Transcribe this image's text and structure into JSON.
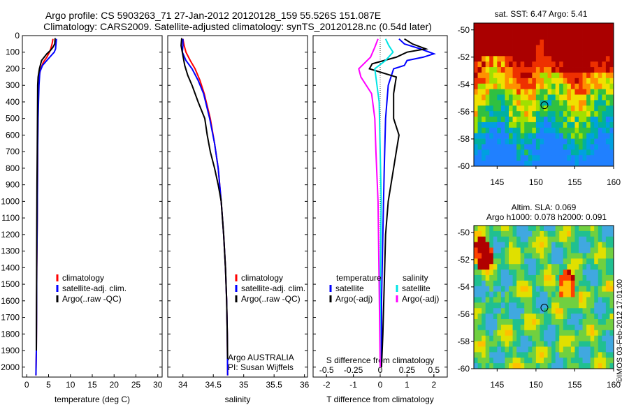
{
  "header": {
    "line1": "Argo profile: CS 5903263_71 27-Jan-2012 20120128_159 55.526S 151.087E",
    "line2": "Climatology: CARS2009. Satellite-adjusted climatology: synTS_20120128.nc (0.54d later)"
  },
  "credit": "©IMOS 03-Feb-2012 17:01:00",
  "colors": {
    "climatology": "#ff0000",
    "satellite": "#0000ff",
    "argo": "#000000",
    "sat_s": "#00e5e5",
    "argo_s": "#ff00ff"
  },
  "chart_data": [
    {
      "type": "line",
      "panel": "temperature",
      "xlabel": "temperature (deg C)",
      "ylabel": "",
      "xlim": [
        -1,
        31
      ],
      "ylim": [
        2060,
        0
      ],
      "xticks": [
        "0",
        "5",
        "10",
        "15",
        "20",
        "25",
        "30"
      ],
      "yticks": [
        "0",
        "100",
        "200",
        "300",
        "400",
        "500",
        "600",
        "700",
        "800",
        "900",
        "1000",
        "1100",
        "1200",
        "1300",
        "1400",
        "1500",
        "1600",
        "1700",
        "1800",
        "1900",
        "2000"
      ],
      "legend": [
        "climatology",
        "satellite-adj. clim.",
        "Argo(..raw -QC)"
      ],
      "series": [
        {
          "name": "climatology",
          "color": "climatology",
          "x": [
            6.0,
            5.8,
            5.5,
            5.2,
            4.6,
            3.8,
            3.2,
            2.8,
            2.7,
            2.6,
            2.55,
            2.5,
            2.45,
            2.4,
            2.3,
            2.25,
            2.2,
            2.1
          ],
          "y": [
            20,
            50,
            80,
            100,
            130,
            160,
            200,
            250,
            300,
            400,
            500,
            700,
            900,
            1100,
            1400,
            1700,
            1900,
            2050
          ]
        },
        {
          "name": "satellite-adj. clim.",
          "color": "satellite",
          "x": [
            6.8,
            6.7,
            6.6,
            6.3,
            5.6,
            4.6,
            3.6,
            3.0,
            2.8,
            2.7,
            2.6,
            2.5,
            2.45,
            2.4,
            2.3,
            2.25,
            2.2,
            2.1
          ],
          "y": [
            20,
            50,
            80,
            100,
            120,
            150,
            180,
            220,
            300,
            400,
            500,
            700,
            900,
            1100,
            1400,
            1700,
            1900,
            2050
          ]
        },
        {
          "name": "Argo(..raw -QC)",
          "color": "argo",
          "x": [
            6.5,
            6.4,
            6.0,
            5.4,
            4.6,
            3.4,
            2.9,
            2.6,
            2.5,
            2.45,
            2.4,
            2.35,
            2.3,
            2.2
          ],
          "y": [
            15,
            50,
            70,
            90,
            110,
            150,
            200,
            250,
            300,
            500,
            700,
            900,
            1200,
            1900
          ]
        }
      ]
    },
    {
      "type": "line",
      "panel": "salinity",
      "xlabel": "salinity",
      "ylabel": "",
      "xlim": [
        33.75,
        36.05
      ],
      "ylim": [
        2060,
        0
      ],
      "xticks": [
        "34",
        "34.5",
        "35",
        "35.5",
        "36"
      ],
      "legend": [
        "climatology",
        "satellite-adj. clim.",
        "Argo(..raw -QC)"
      ],
      "series": [
        {
          "name": "climatology",
          "color": "climatology",
          "x": [
            34.0,
            34.02,
            34.05,
            34.12,
            34.2,
            34.28,
            34.35,
            34.45,
            34.52,
            34.58,
            34.63,
            34.67,
            34.7,
            34.72,
            34.73,
            34.735
          ],
          "y": [
            20,
            60,
            100,
            150,
            200,
            270,
            350,
            500,
            650,
            800,
            1000,
            1200,
            1400,
            1600,
            1800,
            2050
          ]
        },
        {
          "name": "satellite-adj. clim.",
          "color": "satellite",
          "x": [
            34.0,
            34.0,
            33.99,
            34.05,
            34.15,
            34.25,
            34.34,
            34.44,
            34.52,
            34.58,
            34.63,
            34.67,
            34.7,
            34.72,
            34.73,
            34.735
          ],
          "y": [
            20,
            60,
            100,
            150,
            200,
            270,
            350,
            500,
            650,
            800,
            1000,
            1200,
            1400,
            1600,
            1800,
            2050
          ]
        },
        {
          "name": "Argo(..raw -QC)",
          "color": "argo",
          "x": [
            33.98,
            33.97,
            34.0,
            34.03,
            34.08,
            34.15,
            34.25,
            34.36,
            34.4,
            34.45,
            34.52,
            34.58,
            34.63,
            34.67,
            34.7,
            34.72,
            34.73,
            34.735
          ],
          "y": [
            15,
            60,
            120,
            180,
            240,
            300,
            400,
            500,
            600,
            700,
            800,
            900,
            1000,
            1200,
            1400,
            1600,
            1800,
            1950
          ]
        }
      ],
      "annotations": [
        "Argo AUSTRALIA",
        "PI: Susan Wijffels"
      ]
    },
    {
      "type": "line",
      "panel": "difference",
      "xlabel": "T difference from climatology",
      "x2label": "S difference from climatology",
      "xlim": [
        -2.5,
        2.5
      ],
      "x2lim": [
        -0.625,
        0.625
      ],
      "ylim": [
        2060,
        0
      ],
      "xticks": [
        "-2",
        "-1",
        "0",
        "1",
        "2"
      ],
      "x2ticks": [
        "-0.5",
        "-0.25",
        "0",
        "0.25",
        "0.5"
      ],
      "legend": [
        "temperature",
        "satellite",
        "Argo(-adj)",
        "salinity",
        "satellite",
        "Argo(-adj)"
      ],
      "series": [
        {
          "name": "temperature satellite",
          "color": "satellite",
          "x": [
            0.7,
            0.9,
            1.5,
            2.0,
            1.6,
            1.0,
            0.9,
            0.5,
            0.3,
            0.2,
            0.15,
            0.1,
            0.05,
            0.05
          ],
          "y": [
            20,
            50,
            80,
            110,
            130,
            150,
            180,
            200,
            300,
            500,
            800,
            1200,
            1600,
            2000
          ]
        },
        {
          "name": "temperature Argo(-adj)",
          "color": "argo",
          "x": [
            0.9,
            1.2,
            1.7,
            1.0,
            0.6,
            -0.3,
            -0.4,
            0.6,
            0.5,
            0.5,
            0.7,
            0.6,
            0.5,
            0.3,
            0.2,
            0.15,
            0.1,
            0.05
          ],
          "y": [
            20,
            50,
            80,
            100,
            130,
            170,
            200,
            250,
            350,
            500,
            600,
            700,
            800,
            1000,
            1200,
            1500,
            1800,
            2000
          ]
        },
        {
          "name": "salinity satellite",
          "color": "sat_s",
          "x": [
            0.05,
            0.08,
            0.12,
            0.05,
            -0.05,
            -0.01,
            0.0,
            0.01,
            0.0,
            0.0
          ],
          "y": [
            20,
            60,
            100,
            150,
            200,
            400,
            700,
            1000,
            1500,
            2000
          ]
        },
        {
          "name": "salinity Argo(-adj)",
          "color": "argo_s",
          "x": [
            -0.02,
            -0.05,
            -0.09,
            -0.2,
            -0.18,
            -0.08,
            -0.05,
            -0.04,
            -0.02,
            -0.01,
            0.0
          ],
          "y": [
            20,
            70,
            130,
            200,
            250,
            350,
            500,
            700,
            1000,
            1500,
            2000
          ]
        }
      ]
    },
    {
      "type": "heatmap",
      "panel": "sst_map",
      "title": "sat. SST: 6.47 Argo: 5.41",
      "xlim": [
        142,
        160
      ],
      "ylim": [
        -60,
        -49.5
      ],
      "xticks": [
        "145",
        "150",
        "155",
        "160"
      ],
      "yticks": [
        "-50",
        "-52",
        "-54",
        "-56",
        "-58",
        "-60"
      ],
      "marker": {
        "lon": 151.087,
        "lat": -55.526
      }
    },
    {
      "type": "heatmap",
      "panel": "sla_map",
      "title": "Altim. SLA: 0.069",
      "subtitle": "Argo h1000: 0.078 h2000: 0.091",
      "xlim": [
        142,
        160
      ],
      "ylim": [
        -60,
        -49.5
      ],
      "xticks": [
        "145",
        "150",
        "155",
        "160"
      ],
      "yticks": [
        "-50",
        "-52",
        "-54",
        "-56",
        "-58",
        "-60"
      ],
      "marker": {
        "lon": 151.087,
        "lat": -55.526
      }
    }
  ]
}
